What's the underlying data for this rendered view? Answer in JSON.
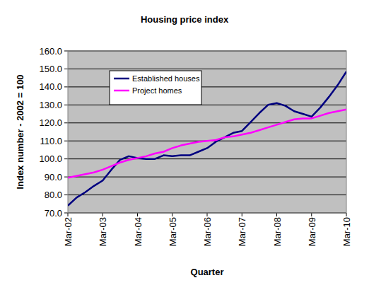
{
  "chart_data": {
    "type": "line",
    "title": "Housing price index",
    "x_label": "Quarter",
    "y_label": "Index number - 2002 = 100",
    "categories": [
      "Mar-02",
      null,
      null,
      null,
      "Mar-03",
      null,
      null,
      null,
      "Mar-04",
      null,
      null,
      null,
      "Mar-05",
      null,
      null,
      null,
      "Mar-06",
      null,
      null,
      null,
      "Mar-07",
      null,
      null,
      null,
      "Mar-08",
      null,
      null,
      null,
      "Mar-09",
      null,
      null,
      null,
      "Mar-10"
    ],
    "series": [
      {
        "name": "Established houses",
        "color": "#000080",
        "values": [
          74,
          78.5,
          81.5,
          85,
          88,
          94,
          99.5,
          101.5,
          100.5,
          100,
          100,
          102,
          101.5,
          102,
          102,
          104,
          106,
          109.5,
          112,
          114.5,
          115.5,
          120.5,
          125.5,
          130,
          131,
          129.5,
          126.5,
          125,
          123.5,
          128.5,
          134.5,
          141,
          148.5
        ]
      },
      {
        "name": "Project homes",
        "color": "#ff00ff",
        "values": [
          89.5,
          90.5,
          91.5,
          92.5,
          94,
          96,
          98,
          99.5,
          100.5,
          101.5,
          103,
          104,
          106,
          107.5,
          108.5,
          109.5,
          110,
          110.5,
          112,
          112.5,
          113.5,
          114.5,
          116,
          117.5,
          119,
          120.5,
          122,
          122.5,
          122.5,
          124,
          125.5,
          126.5,
          127.5
        ]
      }
    ],
    "ylim": [
      70,
      160
    ],
    "yticks": [
      {
        "value": 70,
        "label": "70.0"
      },
      {
        "value": 80,
        "label": "80.0"
      },
      {
        "value": 90,
        "label": "90.0"
      },
      {
        "value": 100,
        "label": "100.0"
      },
      {
        "value": 110,
        "label": "110.0"
      },
      {
        "value": 120,
        "label": "120.0"
      },
      {
        "value": 130,
        "label": "130.0"
      },
      {
        "value": 140,
        "label": "140.0"
      },
      {
        "value": 150,
        "label": "150.0"
      },
      {
        "value": 160,
        "label": "160.0"
      }
    ],
    "grid": true,
    "legend": "top-left"
  }
}
